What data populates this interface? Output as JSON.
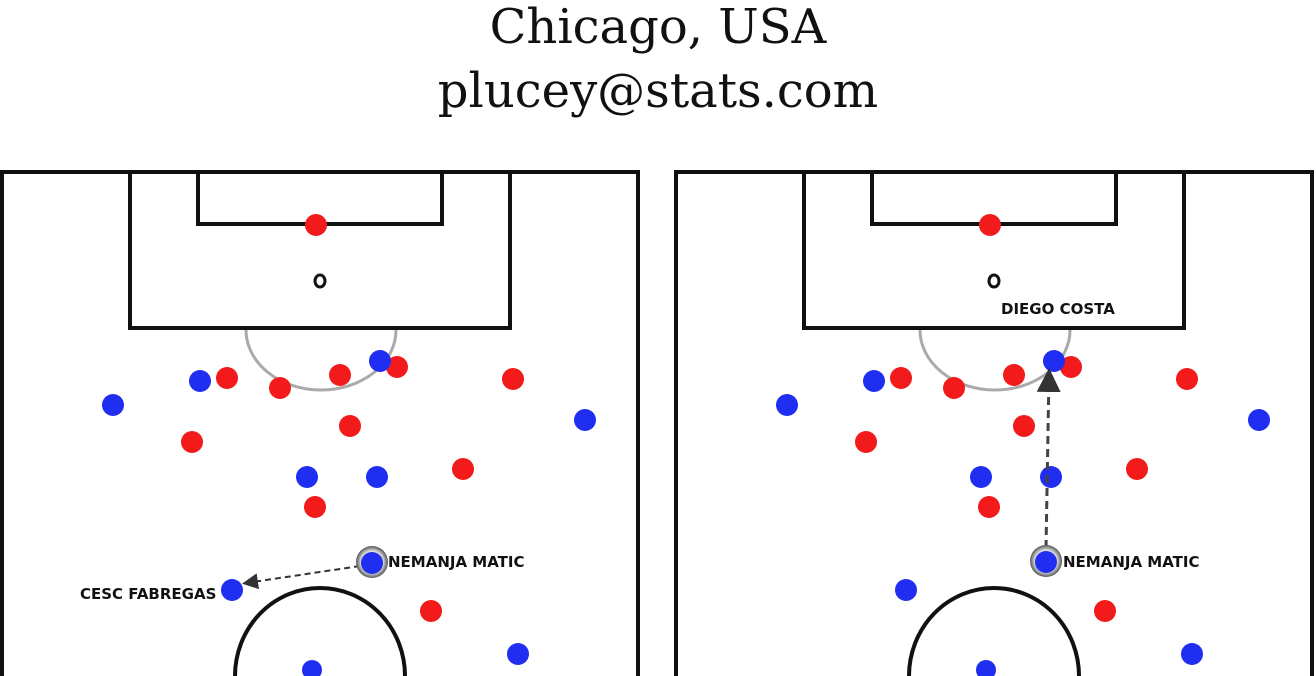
{
  "header": {
    "location": "Chicago, USA",
    "email": "plucey@stats.com"
  },
  "colors": {
    "team_red": "#f21a1a",
    "team_blue": "#1f2ef0",
    "line": "#111111",
    "arrow": "#444444"
  },
  "pitches": [
    {
      "labels": {
        "passer": "NEMANJA MATIC",
        "receiver": "CESC FABREGAS"
      }
    },
    {
      "labels": {
        "passer": "NEMANJA MATIC",
        "receiver": "DIEGO COSTA"
      }
    }
  ]
}
